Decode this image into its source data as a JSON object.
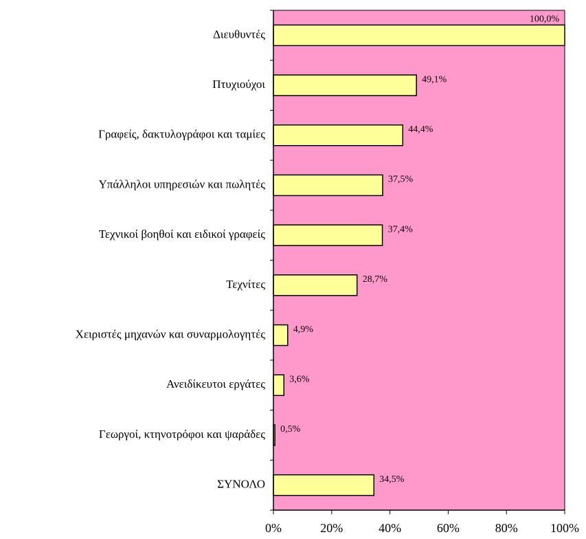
{
  "chart_data": {
    "type": "bar",
    "orientation": "horizontal",
    "categories": [
      "Διευθυντές",
      "Πτυχιούχοι",
      "Γραφείς, δακτυλογράφοι και ταμίες",
      "Υπάλληλοι υπηρεσιών και πωλητές",
      "Τεχνικοί βοηθοί και ειδικοί γραφείς",
      "Τεχνίτες",
      "Χειριστές μηχανών και συναρμολογητές",
      "Ανειδίκευτοι εργάτες",
      "Γεωργοί, κτηνοτρόφοι και ψαράδες",
      "ΣΥΝΟΛΟ"
    ],
    "values": [
      100,
      49.1,
      44.4,
      37.5,
      37.4,
      28.7,
      4.9,
      3.6,
      0.5,
      34.5
    ],
    "value_labels": [
      "100,0%",
      "49,1%",
      "44,4%",
      "37,5%",
      "37,4%",
      "28,7%",
      "4,9%",
      "3,6%",
      "0,5%",
      "34,5%"
    ],
    "color": "#ffff99",
    "background": "#ff99cc",
    "xlim": [
      0,
      100
    ],
    "xticks": [
      {
        "value": 0,
        "label": "0%"
      },
      {
        "value": 20,
        "label": "20%"
      },
      {
        "value": 40,
        "label": "40%"
      },
      {
        "value": 60,
        "label": "60%"
      },
      {
        "value": 80,
        "label": "80%"
      },
      {
        "value": 100,
        "label": "100%"
      }
    ],
    "grid": false
  }
}
